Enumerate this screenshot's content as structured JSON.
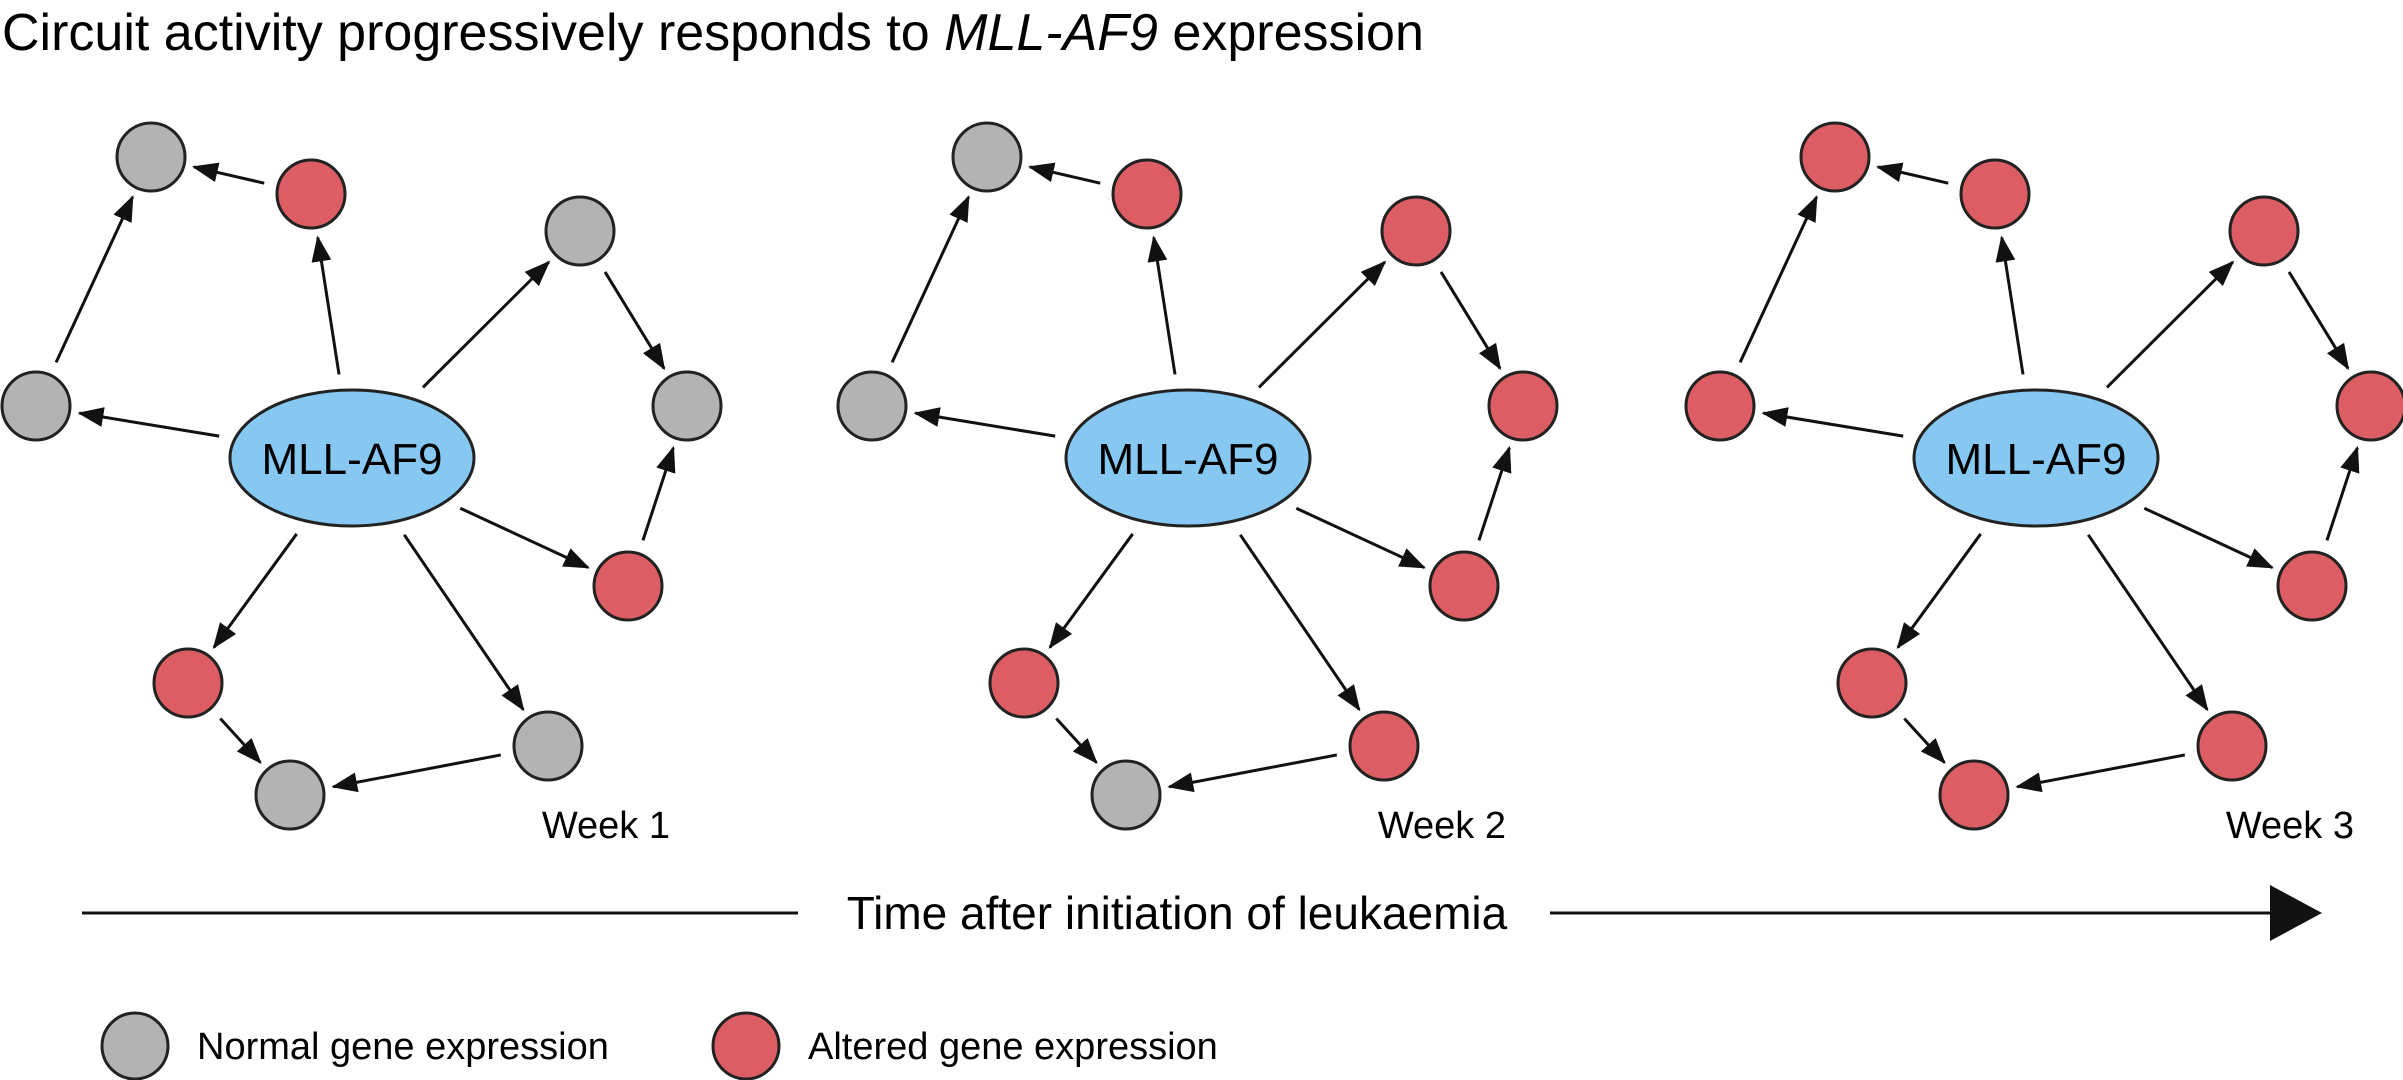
{
  "title": {
    "prefix": "Circuit activity progressively responds to ",
    "gene": "MLL-AF9",
    "suffix": " expression"
  },
  "colors": {
    "normal": "#b3b3b3",
    "altered": "#dc5d63",
    "hub": "#86c8f1",
    "stroke": "#222222"
  },
  "panels": [
    {
      "hub_label": "MLL-AF9",
      "week_label": "Week 1",
      "node_states": [
        "normal",
        "altered",
        "normal",
        "normal",
        "normal",
        "altered",
        "altered",
        "normal",
        "normal"
      ]
    },
    {
      "hub_label": "MLL-AF9",
      "week_label": "Week 2",
      "node_states": [
        "normal",
        "altered",
        "altered",
        "altered",
        "normal",
        "altered",
        "altered",
        "altered",
        "normal"
      ]
    },
    {
      "hub_label": "MLL-AF9",
      "week_label": "Week 3",
      "node_states": [
        "altered",
        "altered",
        "altered",
        "altered",
        "altered",
        "altered",
        "altered",
        "altered",
        "altered"
      ]
    }
  ],
  "timeline": {
    "label": "Time after initiation of leukaemia"
  },
  "legend": {
    "normal_label": "Normal gene expression",
    "altered_label": "Altered gene expression"
  }
}
